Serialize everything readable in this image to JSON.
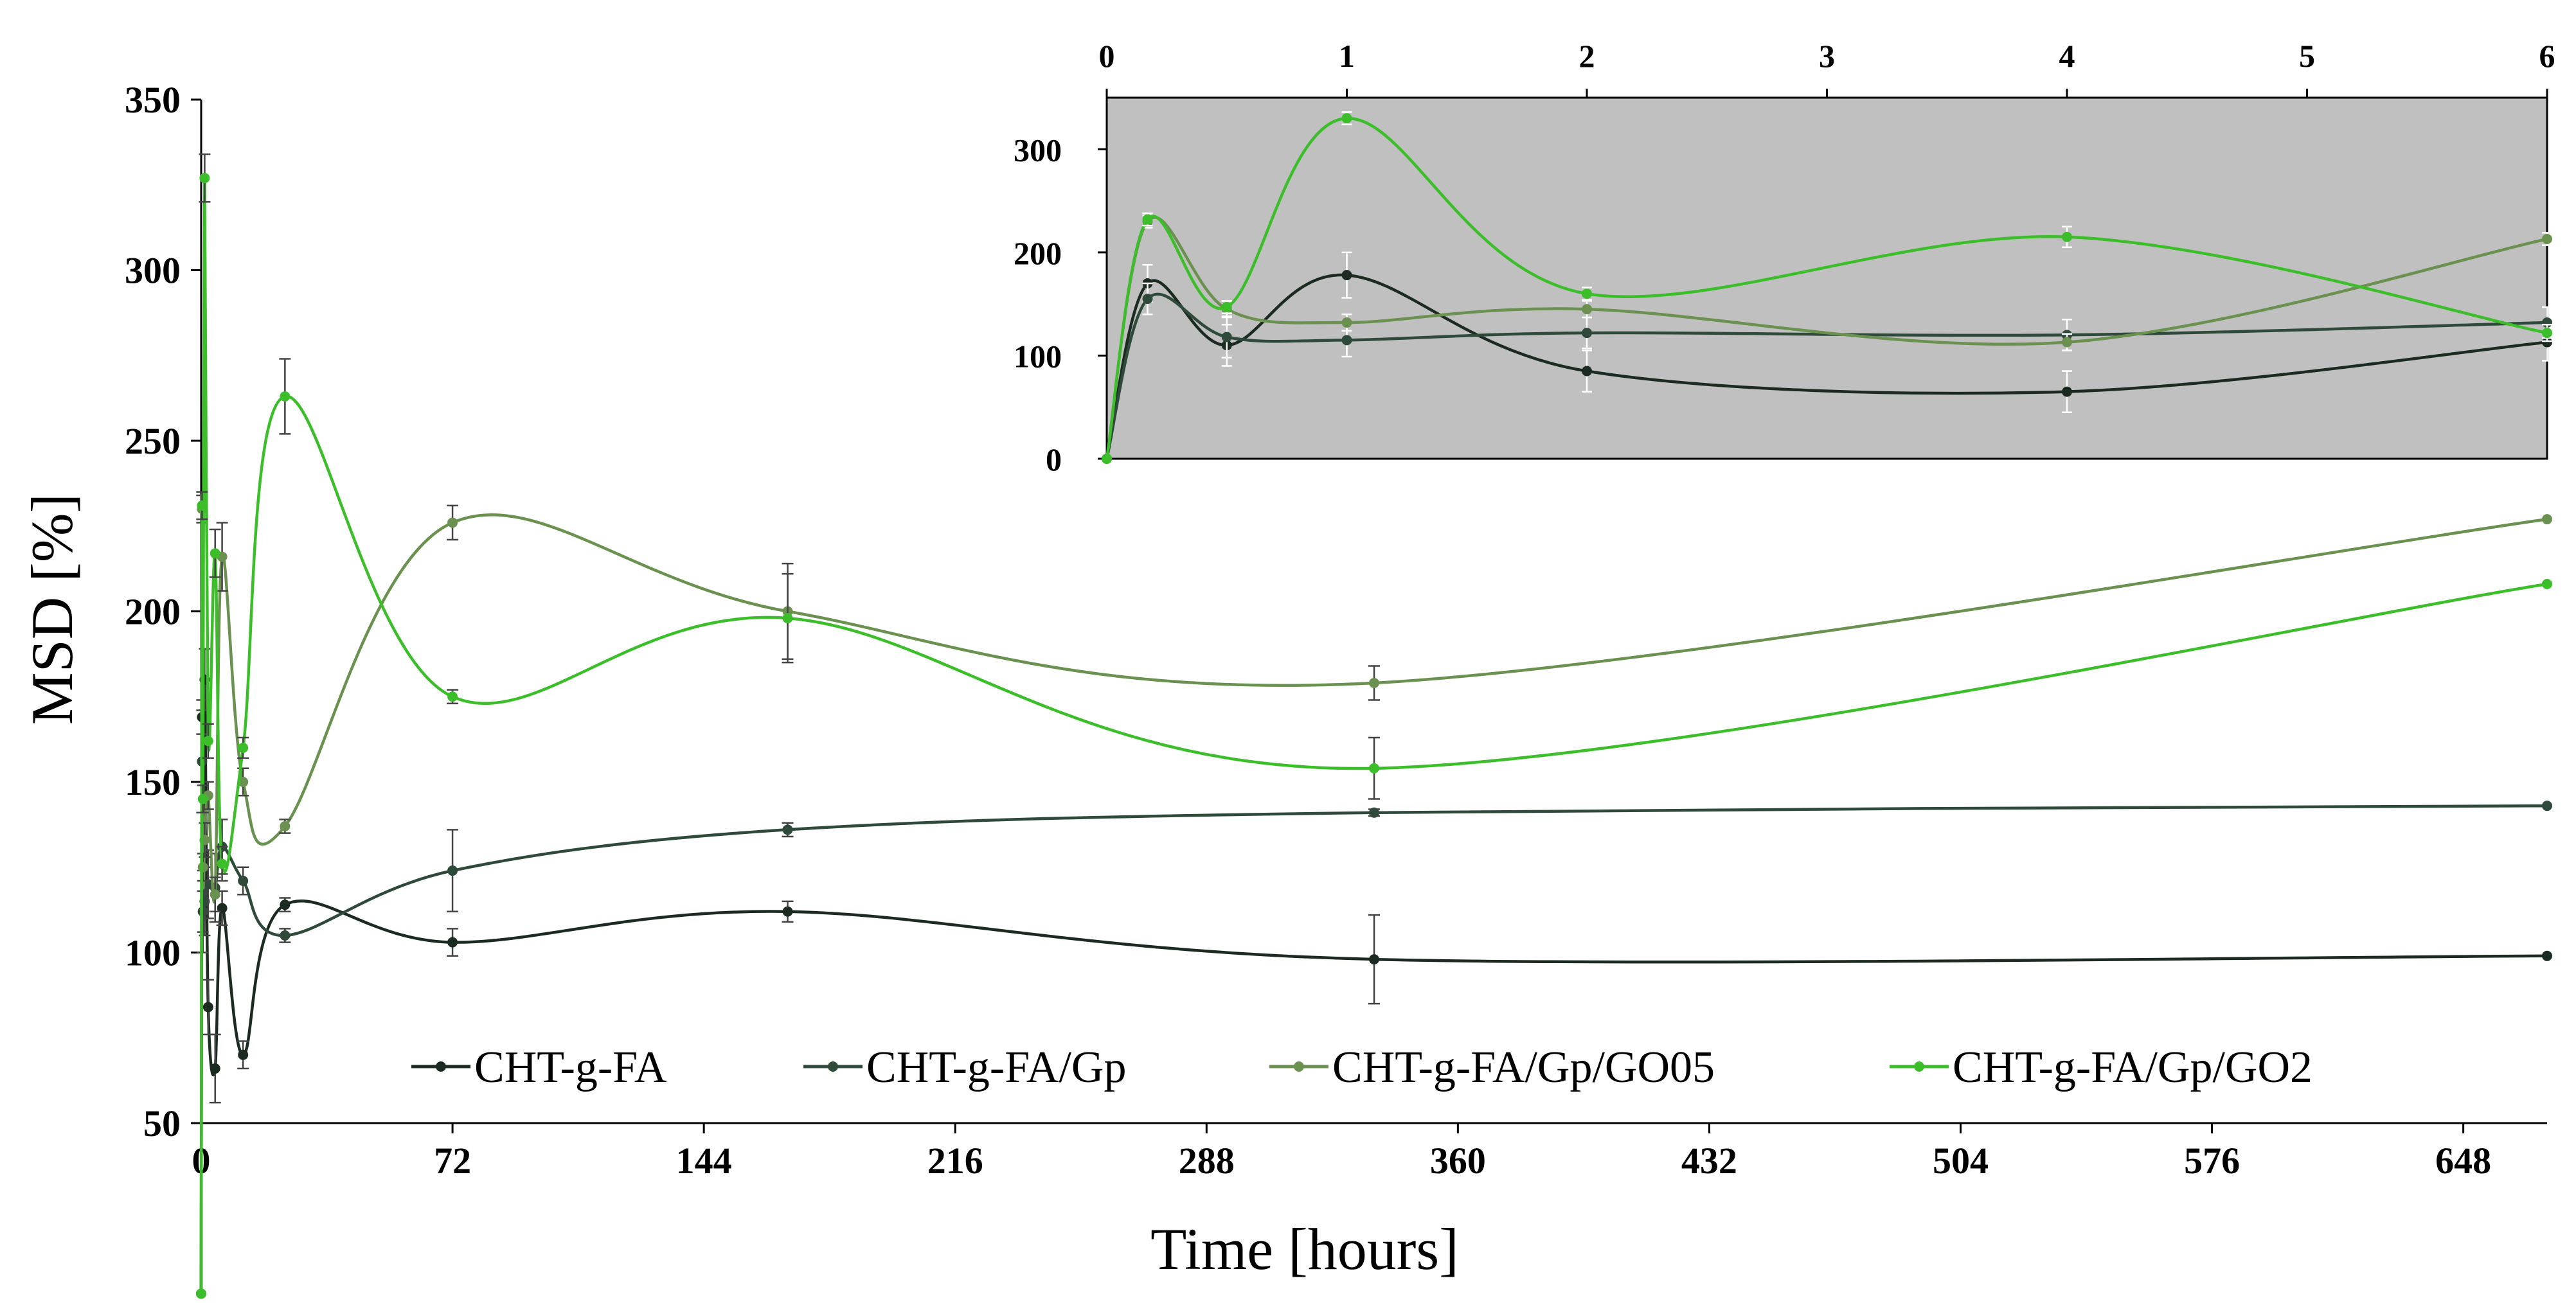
{
  "chart_data": [
    {
      "type": "line",
      "role": "main",
      "xlabel": "Time [hours]",
      "ylabel": "MSD [%]",
      "xlim": [
        0,
        672
      ],
      "ylim": [
        50,
        350
      ],
      "xticks": [
        0,
        72,
        144,
        216,
        288,
        360,
        432,
        504,
        576,
        648
      ],
      "yticks": [
        50,
        100,
        150,
        200,
        250,
        300,
        350
      ],
      "legend_position": "bottom",
      "x": [
        0,
        0.25,
        0.5,
        1,
        2,
        4,
        6,
        12,
        24,
        72,
        168,
        336,
        672
      ],
      "series": [
        {
          "name": "CHT-g-FA",
          "color": "#1c2b22",
          "values": [
            0,
            169,
            112,
            180,
            84,
            66,
            113,
            70,
            114,
            103,
            112,
            98,
            99
          ],
          "errors": [
            0,
            5,
            6,
            9,
            8,
            10,
            5,
            4,
            2,
            4,
            3,
            13,
            0
          ]
        },
        {
          "name": "CHT-g-FA/Gp",
          "color": "#2f4a3a",
          "values": [
            0,
            156,
            112,
            115,
            120,
            119,
            131,
            121,
            105,
            124,
            136,
            141,
            143
          ],
          "errors": [
            0,
            15,
            12,
            10,
            10,
            10,
            8,
            4,
            2,
            12,
            2,
            1,
            0
          ]
        },
        {
          "name": "CHT-g-FA/Gp/GO05",
          "color": "#6a9150",
          "values": [
            0,
            230,
            125,
            133,
            146,
            117,
            216,
            150,
            137,
            226,
            200,
            179,
            227
          ],
          "errors": [
            0,
            4,
            4,
            5,
            4,
            5,
            10,
            4,
            2,
            5,
            14,
            5,
            0
          ]
        },
        {
          "name": "CHT-g-FA/Gp/GO2",
          "color": "#3cbe2b",
          "values": [
            0,
            231,
            145,
            327,
            162,
            217,
            126,
            160,
            263,
            175,
            198,
            154,
            208
          ],
          "errors": [
            0,
            4,
            4,
            7,
            5,
            7,
            5,
            3,
            11,
            2,
            13,
            9,
            0
          ]
        }
      ]
    },
    {
      "type": "line",
      "role": "inset",
      "background": "#c0c0c0",
      "xlim": [
        0,
        6
      ],
      "ylim": [
        0,
        350
      ],
      "xticks": [
        0,
        1,
        2,
        3,
        4,
        5,
        6
      ],
      "yticks": [
        0,
        100,
        200,
        300
      ],
      "x_axis_position": "top",
      "x": [
        0,
        0.17,
        0.5,
        1,
        2,
        4,
        6
      ],
      "series": [
        {
          "name": "CHT-g-FA",
          "color": "#1c2b22",
          "values": [
            0,
            170,
            110,
            178,
            85,
            65,
            113
          ],
          "errors": [
            0,
            18,
            20,
            22,
            20,
            20,
            18
          ]
        },
        {
          "name": "CHT-g-FA/Gp",
          "color": "#2f4a3a",
          "values": [
            0,
            155,
            118,
            115,
            122,
            120,
            132
          ],
          "errors": [
            0,
            15,
            20,
            16,
            15,
            15,
            15
          ]
        },
        {
          "name": "CHT-g-FA/Gp/GO05",
          "color": "#6a9150",
          "values": [
            0,
            230,
            145,
            132,
            145,
            113,
            213
          ],
          "errors": [
            0,
            6,
            8,
            8,
            8,
            8,
            6
          ]
        },
        {
          "name": "CHT-g-FA/Gp/GO2",
          "color": "#3cbe2b",
          "values": [
            0,
            232,
            147,
            330,
            160,
            215,
            122
          ],
          "errors": [
            0,
            6,
            6,
            6,
            6,
            10,
            8
          ]
        }
      ]
    }
  ]
}
